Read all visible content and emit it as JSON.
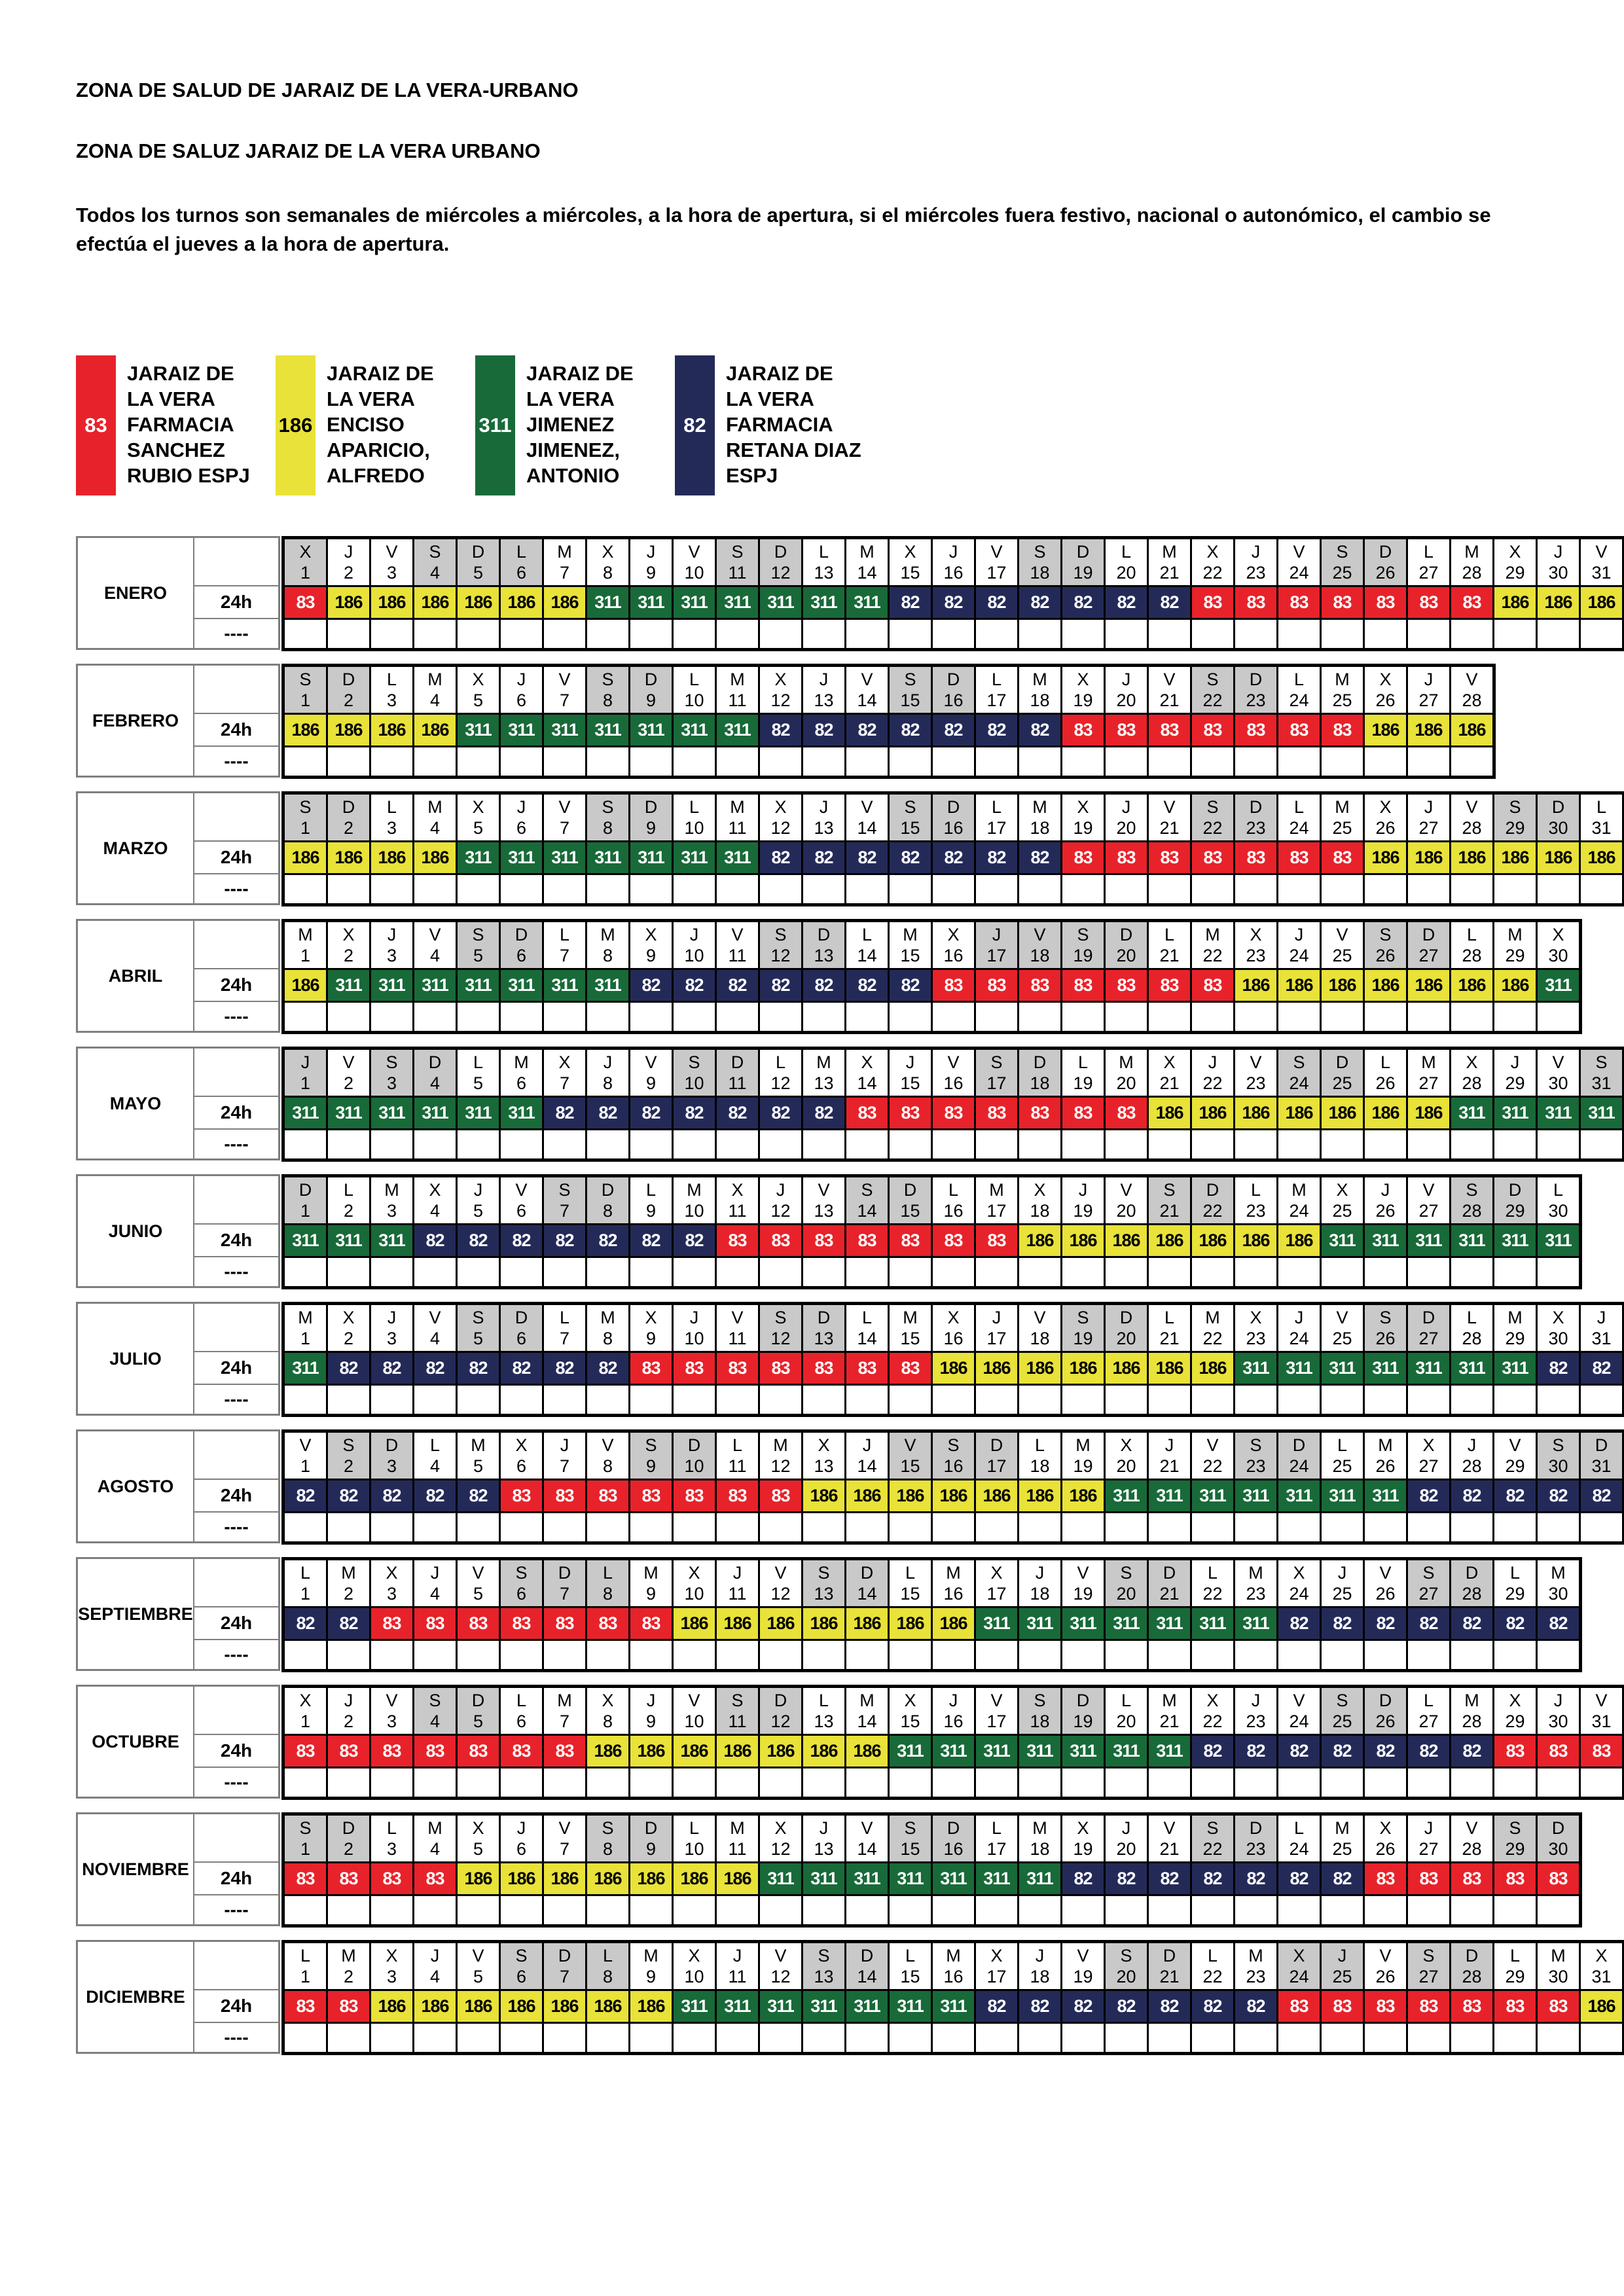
{
  "page": {
    "title1": "ZONA DE SALUD DE JARAIZ DE LA VERA-URBANO",
    "title2": "ZONA DE SALUZ JARAIZ DE LA VERA URBANO",
    "note": "Todos los turnos son semanales de miércoles a miércoles, a la hora de apertura, si el miércoles fuera festivo, nacional o autonómico, el cambio se efectúa el jueves a la hora de apertura."
  },
  "legend": [
    {
      "code": "83",
      "color": "#e8222a",
      "text_color": "#ffffff",
      "lines": [
        "JARAIZ DE",
        "LA VERA",
        "FARMACIA",
        "SANCHEZ",
        "RUBIO ESPJ"
      ]
    },
    {
      "code": "186",
      "color": "#e8e239",
      "text_color": "#000000",
      "lines": [
        "JARAIZ DE",
        "LA VERA",
        "ENCISO",
        "APARICIO,",
        "ALFREDO"
      ]
    },
    {
      "code": "311",
      "color": "#186a39",
      "text_color": "#ffffff",
      "lines": [
        "JARAIZ DE",
        "LA VERA",
        "JIMENEZ",
        "JIMENEZ,",
        "ANTONIO"
      ]
    },
    {
      "code": "82",
      "color": "#242a58",
      "text_color": "#ffffff",
      "lines": [
        "JARAIZ DE",
        "LA VERA",
        "FARMACIA",
        "RETANA DIAZ",
        "ESPJ"
      ]
    }
  ],
  "colors": {
    "83": {
      "bg": "#e8222a",
      "fg": "#ffffff"
    },
    "186": {
      "bg": "#e8e239",
      "fg": "#000000"
    },
    "311": {
      "bg": "#186a39",
      "fg": "#ffffff"
    },
    "82": {
      "bg": "#242a58",
      "fg": "#ffffff"
    },
    "gray_day": "#c9c9c9"
  },
  "row_labels": {
    "shift": "24h",
    "other": "----"
  },
  "weekday_cycle": [
    "L",
    "M",
    "X",
    "J",
    "V",
    "S",
    "D"
  ],
  "months": [
    {
      "name": "ENERO",
      "days": 31,
      "first_weekday": "X",
      "gray_days": [
        1,
        4,
        5,
        6,
        11,
        12,
        18,
        19,
        25,
        26
      ],
      "codes": [
        83,
        186,
        186,
        186,
        186,
        186,
        186,
        311,
        311,
        311,
        311,
        311,
        311,
        311,
        82,
        82,
        82,
        82,
        82,
        82,
        82,
        83,
        83,
        83,
        83,
        83,
        83,
        83,
        186,
        186,
        186
      ]
    },
    {
      "name": "FEBRERO",
      "days": 28,
      "first_weekday": "S",
      "gray_days": [
        1,
        2,
        8,
        9,
        15,
        16,
        22,
        23
      ],
      "codes": [
        186,
        186,
        186,
        186,
        311,
        311,
        311,
        311,
        311,
        311,
        311,
        82,
        82,
        82,
        82,
        82,
        82,
        82,
        83,
        83,
        83,
        83,
        83,
        83,
        83,
        186,
        186,
        186
      ]
    },
    {
      "name": "MARZO",
      "days": 31,
      "first_weekday": "S",
      "gray_days": [
        1,
        2,
        8,
        9,
        15,
        16,
        22,
        23,
        29,
        30
      ],
      "codes": [
        186,
        186,
        186,
        186,
        311,
        311,
        311,
        311,
        311,
        311,
        311,
        82,
        82,
        82,
        82,
        82,
        82,
        82,
        83,
        83,
        83,
        83,
        83,
        83,
        83,
        186,
        186,
        186,
        186,
        186,
        186
      ]
    },
    {
      "name": "ABRIL",
      "days": 30,
      "first_weekday": "M",
      "gray_days": [
        5,
        6,
        12,
        13,
        17,
        18,
        19,
        20,
        26,
        27
      ],
      "codes": [
        186,
        311,
        311,
        311,
        311,
        311,
        311,
        311,
        82,
        82,
        82,
        82,
        82,
        82,
        82,
        83,
        83,
        83,
        83,
        83,
        83,
        83,
        186,
        186,
        186,
        186,
        186,
        186,
        186,
        311
      ]
    },
    {
      "name": "MAYO",
      "days": 31,
      "first_weekday": "J",
      "gray_days": [
        1,
        3,
        4,
        10,
        11,
        17,
        18,
        24,
        25,
        31
      ],
      "codes": [
        311,
        311,
        311,
        311,
        311,
        311,
        82,
        82,
        82,
        82,
        82,
        82,
        82,
        83,
        83,
        83,
        83,
        83,
        83,
        83,
        186,
        186,
        186,
        186,
        186,
        186,
        186,
        311,
        311,
        311,
        311
      ]
    },
    {
      "name": "JUNIO",
      "days": 30,
      "first_weekday": "D",
      "gray_days": [
        1,
        7,
        8,
        14,
        15,
        21,
        22,
        28,
        29
      ],
      "codes": [
        311,
        311,
        311,
        82,
        82,
        82,
        82,
        82,
        82,
        82,
        83,
        83,
        83,
        83,
        83,
        83,
        83,
        186,
        186,
        186,
        186,
        186,
        186,
        186,
        311,
        311,
        311,
        311,
        311,
        311
      ]
    },
    {
      "name": "JULIO",
      "days": 31,
      "first_weekday": "M",
      "gray_days": [
        5,
        6,
        12,
        13,
        19,
        20,
        26,
        27
      ],
      "codes": [
        311,
        82,
        82,
        82,
        82,
        82,
        82,
        82,
        83,
        83,
        83,
        83,
        83,
        83,
        83,
        186,
        186,
        186,
        186,
        186,
        186,
        186,
        311,
        311,
        311,
        311,
        311,
        311,
        311,
        82,
        82
      ]
    },
    {
      "name": "AGOSTO",
      "days": 31,
      "first_weekday": "V",
      "gray_days": [
        2,
        3,
        9,
        10,
        15,
        16,
        17,
        23,
        24,
        30,
        31
      ],
      "codes": [
        82,
        82,
        82,
        82,
        82,
        83,
        83,
        83,
        83,
        83,
        83,
        83,
        186,
        186,
        186,
        186,
        186,
        186,
        186,
        311,
        311,
        311,
        311,
        311,
        311,
        311,
        82,
        82,
        82,
        82,
        82
      ]
    },
    {
      "name": "SEPTIEMBRE",
      "days": 30,
      "first_weekday": "L",
      "gray_days": [
        6,
        7,
        8,
        13,
        14,
        20,
        21,
        27,
        28
      ],
      "codes": [
        82,
        82,
        83,
        83,
        83,
        83,
        83,
        83,
        83,
        186,
        186,
        186,
        186,
        186,
        186,
        186,
        311,
        311,
        311,
        311,
        311,
        311,
        311,
        82,
        82,
        82,
        82,
        82,
        82,
        82
      ]
    },
    {
      "name": "OCTUBRE",
      "days": 31,
      "first_weekday": "X",
      "gray_days": [
        4,
        5,
        11,
        12,
        18,
        19,
        25,
        26
      ],
      "codes": [
        83,
        83,
        83,
        83,
        83,
        83,
        83,
        186,
        186,
        186,
        186,
        186,
        186,
        186,
        311,
        311,
        311,
        311,
        311,
        311,
        311,
        82,
        82,
        82,
        82,
        82,
        82,
        82,
        83,
        83,
        83
      ]
    },
    {
      "name": "NOVIEMBRE",
      "days": 30,
      "first_weekday": "S",
      "gray_days": [
        1,
        2,
        8,
        9,
        15,
        16,
        22,
        23,
        29,
        30
      ],
      "codes": [
        83,
        83,
        83,
        83,
        186,
        186,
        186,
        186,
        186,
        186,
        186,
        311,
        311,
        311,
        311,
        311,
        311,
        311,
        82,
        82,
        82,
        82,
        82,
        82,
        82,
        83,
        83,
        83,
        83,
        83
      ]
    },
    {
      "name": "DICIEMBRE",
      "days": 31,
      "first_weekday": "L",
      "gray_days": [
        6,
        7,
        8,
        13,
        14,
        20,
        21,
        24,
        25,
        27,
        28
      ],
      "codes": [
        83,
        83,
        186,
        186,
        186,
        186,
        186,
        186,
        186,
        311,
        311,
        311,
        311,
        311,
        311,
        311,
        82,
        82,
        82,
        82,
        82,
        82,
        82,
        83,
        83,
        83,
        83,
        83,
        83,
        83,
        186
      ]
    }
  ]
}
